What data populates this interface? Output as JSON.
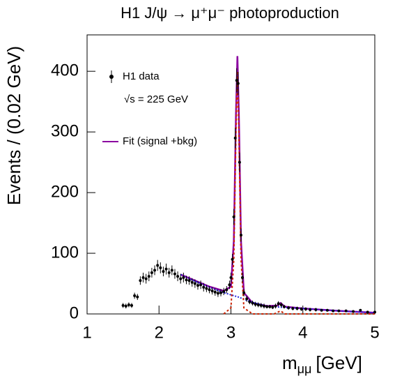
{
  "chart_data": {
    "type": "scatter",
    "title": "H1 J/ψ → μ⁺μ⁻ photoproduction",
    "x_label": "m",
    "x_label_sub": "μμ",
    "x_label_unit": "[GeV]",
    "y_label": "Events / (0.02 GeV)",
    "annotation": "√s = 225 GeV",
    "xlim": [
      1,
      5
    ],
    "xticks": [
      1,
      2,
      3,
      4,
      5
    ],
    "ylim": [
      0,
      460
    ],
    "yticks": [
      0,
      100,
      200,
      300,
      400
    ],
    "series": [
      {
        "name": "H1 data",
        "color": "#000000",
        "kind": "points",
        "x": [
          1.5,
          1.54,
          1.58,
          1.62,
          1.66,
          1.7,
          1.74,
          1.78,
          1.82,
          1.86,
          1.9,
          1.94,
          1.98,
          2.02,
          2.06,
          2.1,
          2.14,
          2.18,
          2.22,
          2.26,
          2.3,
          2.34,
          2.38,
          2.42,
          2.46,
          2.5,
          2.54,
          2.58,
          2.62,
          2.66,
          2.7,
          2.74,
          2.78,
          2.82,
          2.86,
          2.9,
          2.94,
          2.98,
          3.0,
          3.02,
          3.04,
          3.06,
          3.08,
          3.1,
          3.12,
          3.14,
          3.16,
          3.18,
          3.22,
          3.26,
          3.3,
          3.34,
          3.38,
          3.42,
          3.46,
          3.5,
          3.54,
          3.58,
          3.62,
          3.66,
          3.7,
          3.74,
          3.8,
          3.86,
          3.92,
          3.98,
          4.04,
          4.1,
          4.18,
          4.26,
          4.34,
          4.42,
          4.5,
          4.6,
          4.7,
          4.8,
          4.9,
          5.0
        ],
        "values": [
          14,
          13,
          15,
          14,
          30,
          28,
          55,
          60,
          58,
          62,
          68,
          72,
          80,
          76,
          70,
          74,
          68,
          72,
          66,
          62,
          58,
          60,
          56,
          55,
          52,
          50,
          47,
          48,
          44,
          42,
          40,
          38,
          36,
          34,
          35,
          37,
          40,
          48,
          60,
          90,
          160,
          290,
          385,
          380,
          250,
          130,
          60,
          35,
          25,
          20,
          18,
          16,
          15,
          14,
          13,
          12,
          12,
          11,
          13,
          17,
          15,
          12,
          10,
          9,
          9,
          8,
          8,
          7,
          7,
          6,
          6,
          5,
          5,
          5,
          4,
          6,
          3,
          3
        ],
        "errors": [
          4,
          4,
          4,
          4,
          5,
          5,
          7,
          8,
          8,
          8,
          8,
          8,
          9,
          9,
          8,
          9,
          8,
          8,
          8,
          8,
          8,
          8,
          7,
          7,
          7,
          7,
          7,
          7,
          7,
          6,
          6,
          6,
          6,
          6,
          6,
          6,
          6,
          7,
          8,
          9,
          13,
          17,
          20,
          19,
          16,
          11,
          8,
          6,
          5,
          4,
          4,
          4,
          4,
          4,
          4,
          3,
          3,
          3,
          4,
          4,
          4,
          3,
          3,
          3,
          3,
          3,
          3,
          3,
          3,
          2,
          2,
          2,
          2,
          2,
          2,
          2,
          2,
          2
        ]
      },
      {
        "name": "Fit (signal +bkg)",
        "color": "#8b00a0",
        "kind": "line",
        "line_style": "solid",
        "x": [
          2.3,
          2.5,
          2.7,
          2.9,
          3.0,
          3.04,
          3.07,
          3.09,
          3.11,
          3.14,
          3.18,
          3.3,
          3.5,
          3.65,
          3.69,
          3.75,
          4.0,
          4.5,
          5.0
        ],
        "values": [
          65,
          55,
          45,
          38,
          45,
          120,
          330,
          425,
          330,
          120,
          35,
          18,
          13,
          14,
          18,
          12,
          9,
          5,
          2
        ]
      },
      {
        "color": "#2020e0",
        "kind": "line",
        "line_style": "dotted",
        "x": [
          2.3,
          2.5,
          2.7,
          2.9,
          3.1,
          3.3,
          3.5,
          3.7,
          4.0,
          4.5,
          5.0
        ],
        "values": [
          65,
          54,
          44,
          35,
          28,
          19,
          13,
          11,
          9,
          5,
          2
        ]
      },
      {
        "color": "#cc2200",
        "kind": "line",
        "line_style": "dashed",
        "x": [
          2.9,
          3.0,
          3.04,
          3.07,
          3.09,
          3.11,
          3.14,
          3.18,
          3.3,
          3.6,
          3.69,
          3.75,
          4.0,
          5.0
        ],
        "values": [
          0,
          10,
          90,
          300,
          400,
          300,
          90,
          10,
          0,
          0,
          5,
          0,
          0,
          0
        ]
      }
    ]
  }
}
